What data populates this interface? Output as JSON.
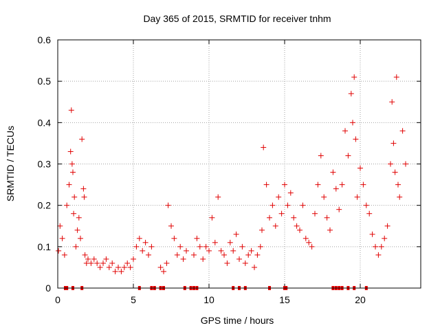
{
  "chart_data": {
    "type": "scatter",
    "title": "Day 365 of 2015, SRMTID for receiver tnhm",
    "xlabel": "GPS time / hours",
    "ylabel": "SRMTID / TECUs",
    "xlim": [
      0,
      24
    ],
    "ylim": [
      0,
      0.6
    ],
    "xticks": [
      0,
      5,
      10,
      15,
      20
    ],
    "xtick_labels": [
      "0",
      "5",
      "10",
      "15",
      "20"
    ],
    "yticks": [
      0,
      0.1,
      0.2,
      0.3,
      0.4,
      0.5,
      0.6
    ],
    "ytick_labels": [
      "0",
      "0.1",
      "0.2",
      "0.3",
      "0.4",
      "0.5",
      "0.6"
    ],
    "grid": true,
    "marker": "+",
    "color": "#e00000",
    "series": [
      {
        "name": "SRMTID",
        "x": [
          0.05,
          0.15,
          0.3,
          0.45,
          0.6,
          0.75,
          0.85,
          0.9,
          0.95,
          1.0,
          1.05,
          1.1,
          1.2,
          1.3,
          1.4,
          1.5,
          1.6,
          1.7,
          1.75,
          1.8,
          1.9,
          2.0,
          2.2,
          2.4,
          2.6,
          2.8,
          3.0,
          3.2,
          3.4,
          3.6,
          3.8,
          4.0,
          4.2,
          4.4,
          4.6,
          4.8,
          5.0,
          5.2,
          5.4,
          5.6,
          5.8,
          6.0,
          6.2,
          6.8,
          7.0,
          7.2,
          7.3,
          7.5,
          7.7,
          7.9,
          8.1,
          8.3,
          8.5,
          9.0,
          9.2,
          9.4,
          9.6,
          9.8,
          10.0,
          10.2,
          10.4,
          10.6,
          10.8,
          11.0,
          11.2,
          11.4,
          11.6,
          11.8,
          12.0,
          12.2,
          12.4,
          12.6,
          12.8,
          13.0,
          13.2,
          13.4,
          13.5,
          13.6,
          13.8,
          14.0,
          14.2,
          14.4,
          14.6,
          14.8,
          15.0,
          15.2,
          15.4,
          15.6,
          15.8,
          16.0,
          16.2,
          16.4,
          16.6,
          16.8,
          17.0,
          17.2,
          17.4,
          17.6,
          17.8,
          18.0,
          18.2,
          18.4,
          18.6,
          18.8,
          19.0,
          19.2,
          19.4,
          19.5,
          19.6,
          19.7,
          19.8,
          20.0,
          20.2,
          20.4,
          20.6,
          20.8,
          21.0,
          21.2,
          21.4,
          21.6,
          21.8,
          22.0,
          22.1,
          22.2,
          22.3,
          22.4,
          22.5,
          22.6,
          22.8,
          23.0
        ],
        "y": [
          0.09,
          0.15,
          0.12,
          0.08,
          0.2,
          0.25,
          0.33,
          0.43,
          0.3,
          0.28,
          0.18,
          0.22,
          0.1,
          0.14,
          0.17,
          0.12,
          0.36,
          0.24,
          0.22,
          0.08,
          0.06,
          0.07,
          0.06,
          0.07,
          0.06,
          0.05,
          0.06,
          0.07,
          0.05,
          0.06,
          0.04,
          0.05,
          0.04,
          0.05,
          0.06,
          0.05,
          0.07,
          0.1,
          0.12,
          0.09,
          0.11,
          0.08,
          0.1,
          0.05,
          0.04,
          0.06,
          0.2,
          0.15,
          0.12,
          0.08,
          0.1,
          0.07,
          0.09,
          0.08,
          0.12,
          0.1,
          0.07,
          0.1,
          0.09,
          0.17,
          0.11,
          0.22,
          0.09,
          0.08,
          0.06,
          0.11,
          0.09,
          0.13,
          0.07,
          0.1,
          0.06,
          0.08,
          0.09,
          0.05,
          0.08,
          0.1,
          0.14,
          0.34,
          0.25,
          0.17,
          0.2,
          0.15,
          0.22,
          0.18,
          0.25,
          0.2,
          0.23,
          0.17,
          0.15,
          0.14,
          0.2,
          0.12,
          0.11,
          0.1,
          0.18,
          0.25,
          0.32,
          0.22,
          0.17,
          0.14,
          0.28,
          0.24,
          0.19,
          0.25,
          0.38,
          0.32,
          0.47,
          0.4,
          0.51,
          0.36,
          0.22,
          0.29,
          0.25,
          0.2,
          0.18,
          0.13,
          0.1,
          0.08,
          0.1,
          0.12,
          0.15,
          0.3,
          0.45,
          0.35,
          0.28,
          0.51,
          0.25,
          0.22,
          0.38,
          0.3
        ],
        "zero_x": [
          0.5,
          0.6,
          1.0,
          1.6,
          5.4,
          6.2,
          6.4,
          6.8,
          7.0,
          8.4,
          8.8,
          9.0,
          9.2,
          11.6,
          12.0,
          12.4,
          14.0,
          15.0,
          15.1,
          18.2,
          18.4,
          18.6,
          18.8,
          19.2,
          19.6,
          20.4
        ]
      }
    ]
  }
}
